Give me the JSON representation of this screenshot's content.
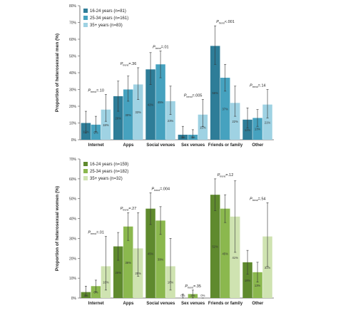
{
  "chart_data": [
    {
      "type": "bar",
      "ylabel": "Proportion of heterosexual men (%)",
      "ylim": [
        0,
        80
      ],
      "yticks": [
        0,
        10,
        20,
        30,
        40,
        50,
        60,
        70,
        80
      ],
      "ytick_suffix": "%",
      "grid": false,
      "legend_position": "top-left",
      "categories": [
        "Internet",
        "Apps",
        "Social venues",
        "Sex venues",
        "Friends or family",
        "Other"
      ],
      "p_trend_values": [
        "=.10",
        "=.36",
        "=.01",
        "=.005",
        "<.001",
        "=.14"
      ],
      "series": [
        {
          "name": "16-24 years (n=81)",
          "color": "#2e7d98",
          "values": [
            10,
            26,
            42,
            3,
            56,
            12
          ],
          "errors": [
            [
              4,
              17
            ],
            [
              17,
              35
            ],
            [
              33,
              52
            ],
            [
              1,
              8
            ],
            [
              45,
              68
            ],
            [
              7,
              19
            ]
          ],
          "labels": [
            "10%",
            "26%",
            "42%",
            "3%",
            "56%",
            "12%"
          ]
        },
        {
          "name": "25-34 years (n=161)",
          "color": "#46a2bf",
          "values": [
            9,
            30,
            45,
            3,
            37,
            13
          ],
          "errors": [
            [
              5,
              14
            ],
            [
              23,
              38
            ],
            [
              37,
              53
            ],
            [
              1,
              6
            ],
            [
              29,
              45
            ],
            [
              8,
              18
            ]
          ],
          "labels": [
            "9%",
            "30%",
            "45%",
            "3%",
            "37%",
            "13%"
          ]
        },
        {
          "name": "35+ years (n=83)",
          "color": "#9fd2e3",
          "values": [
            18,
            33,
            23,
            15,
            22,
            21
          ],
          "errors": [
            [
              11,
              27
            ],
            [
              24,
              43
            ],
            [
              15,
              32
            ],
            [
              8,
              24
            ],
            [
              14,
              32
            ],
            [
              13,
              30
            ]
          ],
          "labels": [
            "18%",
            "33%",
            "23%",
            "15%",
            "22%",
            "21%"
          ]
        }
      ]
    },
    {
      "type": "bar",
      "ylabel": "Proportion of heterosexual women (%)",
      "ylim": [
        0,
        70
      ],
      "yticks": [
        0,
        10,
        20,
        30,
        40,
        50,
        60,
        70
      ],
      "ytick_suffix": "%",
      "grid": false,
      "legend_position": "top-left",
      "categories": [
        "Internet",
        "Apps",
        "Social venues",
        "Sex venues",
        "Friends or family",
        "Other"
      ],
      "p_trend_values": [
        "=.01",
        "=.27",
        "=.004",
        "=.35",
        "=.12",
        "=.54"
      ],
      "series": [
        {
          "name": "16-24 years (n=159)",
          "color": "#5f8a2e",
          "values": [
            3,
            26,
            45,
            0,
            52,
            18
          ],
          "errors": [
            [
              1,
              6
            ],
            [
              19,
              33
            ],
            [
              37,
              53
            ],
            [
              0,
              2
            ],
            [
              44,
              60
            ],
            [
              12,
              24
            ]
          ],
          "labels": [
            "3%",
            "26%",
            "45%",
            "0%",
            "52%",
            "18%"
          ]
        },
        {
          "name": "25-34 years (n=182)",
          "color": "#8bb84e",
          "values": [
            6,
            36,
            39,
            2,
            45,
            13
          ],
          "errors": [
            [
              3,
              9
            ],
            [
              29,
              43
            ],
            [
              32,
              46
            ],
            [
              0,
              4
            ],
            [
              38,
              52
            ],
            [
              8,
              18
            ]
          ],
          "labels": [
            "6%",
            "36%",
            "39%",
            "2%",
            "45%",
            "13%"
          ]
        },
        {
          "name": "35+ years (n=32)",
          "color": "#cfe3b1",
          "values": [
            16,
            25,
            16,
            0,
            41,
            31
          ],
          "errors": [
            [
              4,
              31
            ],
            [
              11,
              43
            ],
            [
              4,
              30
            ],
            [
              0,
              0
            ],
            [
              23,
              59
            ],
            [
              16,
              48
            ]
          ],
          "labels": [
            "16%",
            "25%",
            "16%",
            "0%",
            "41%",
            "31%"
          ]
        }
      ]
    }
  ]
}
